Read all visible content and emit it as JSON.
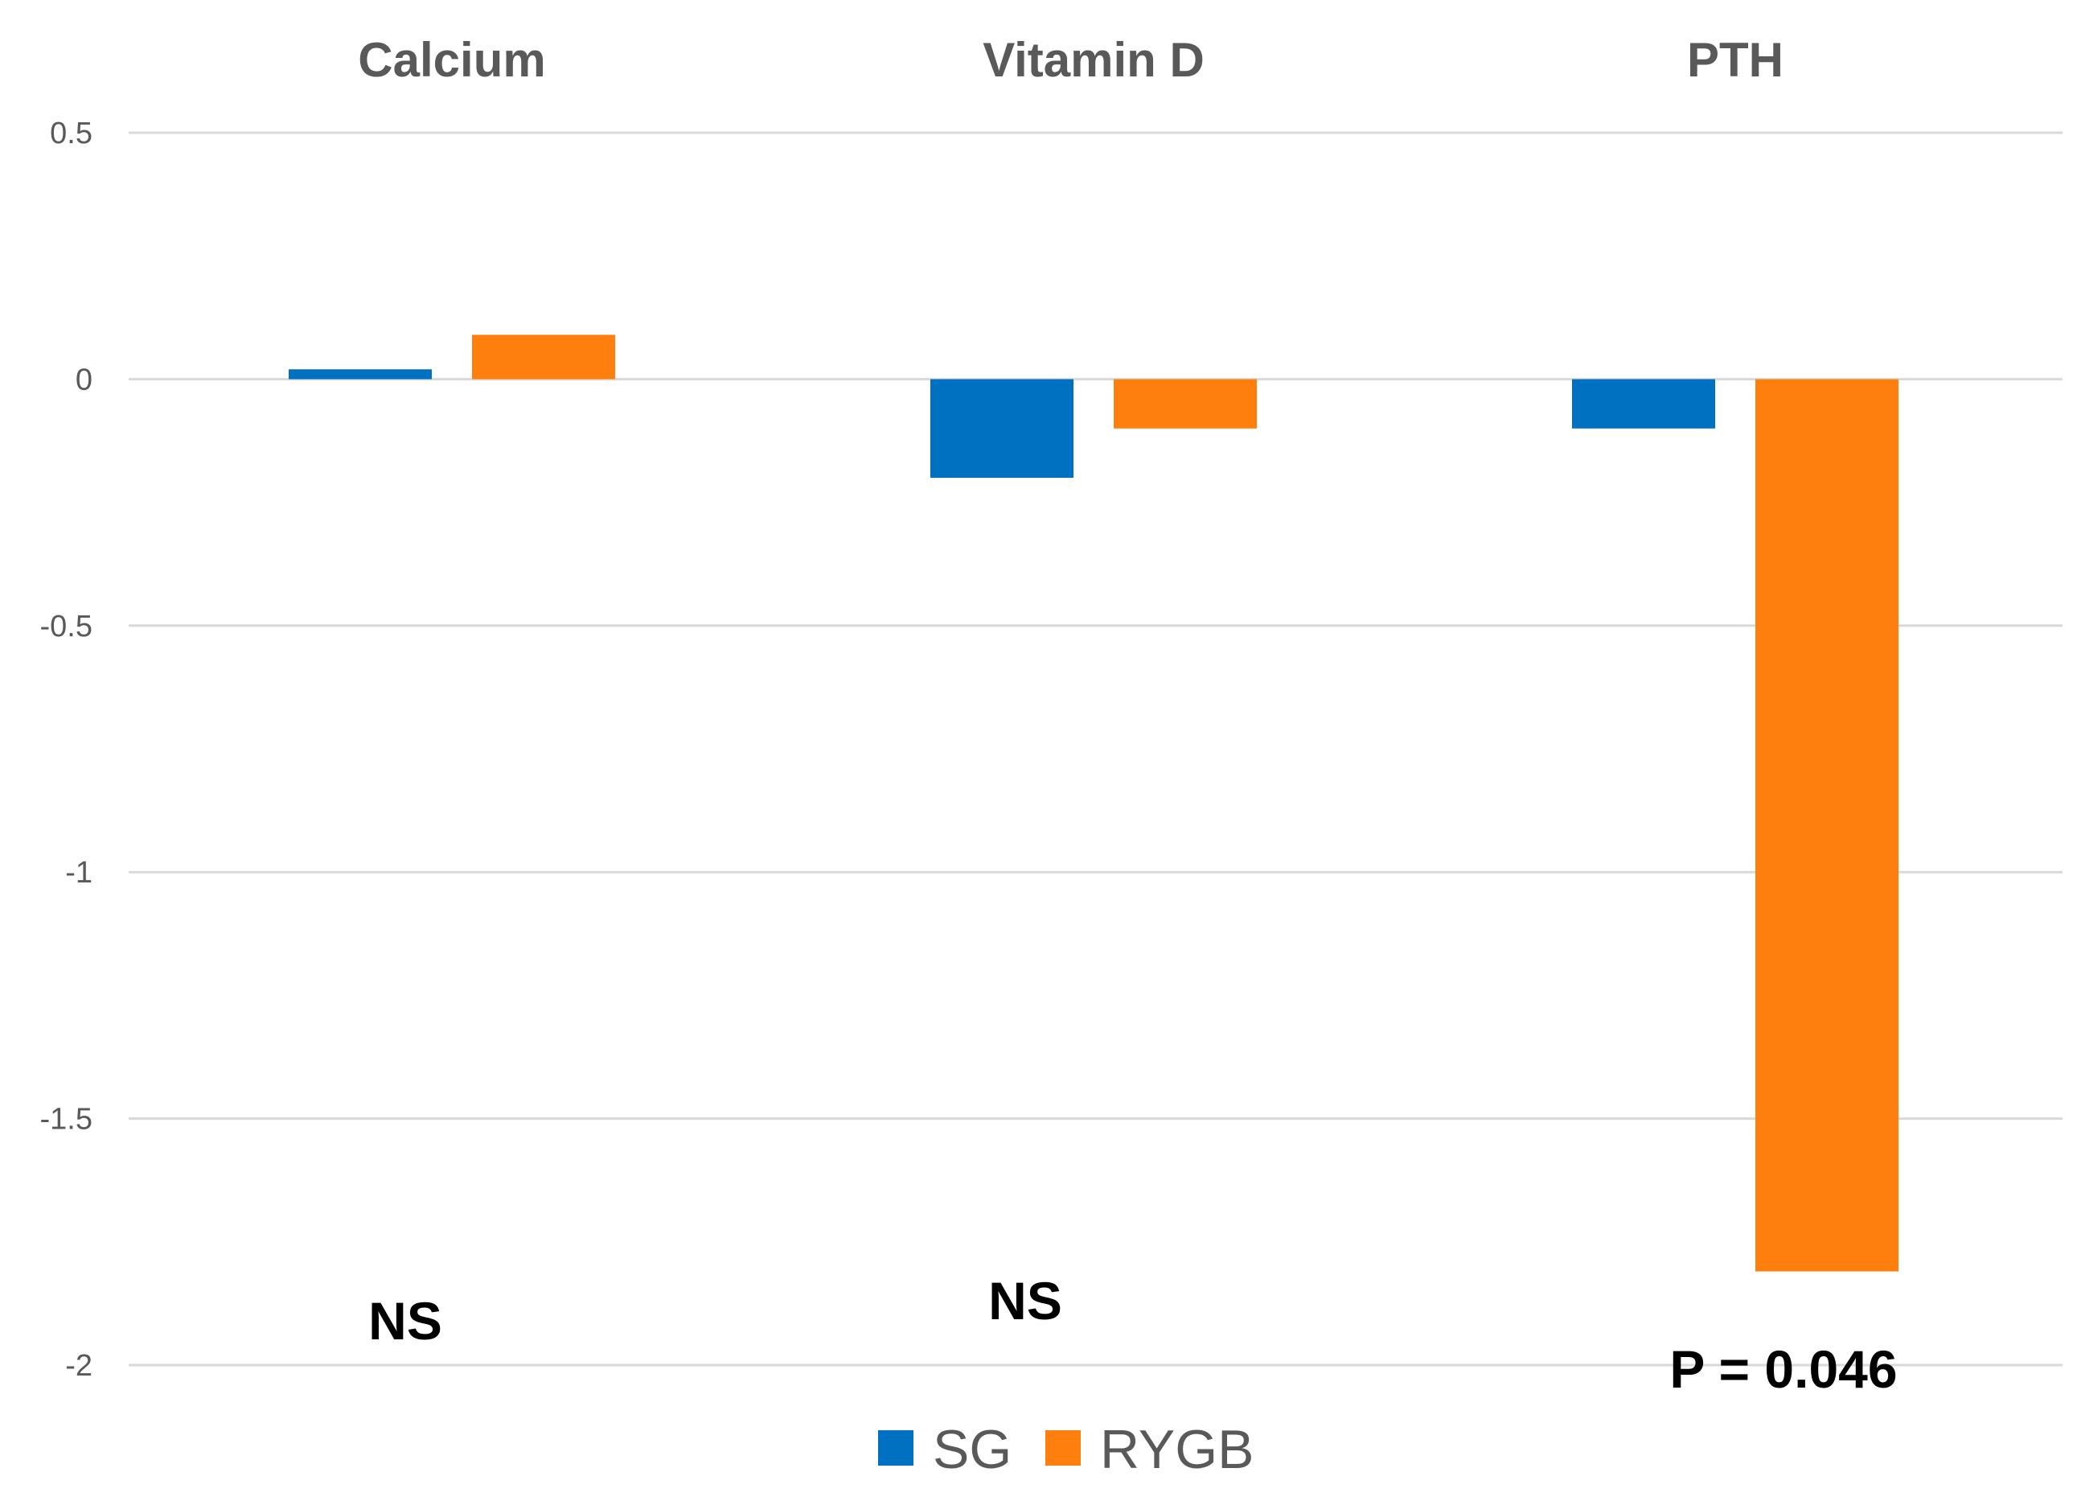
{
  "chart_data": {
    "type": "bar",
    "title": "",
    "xlabel": "",
    "ylabel": "",
    "categories": [
      "Calcium",
      "Vitamin D",
      "PTH"
    ],
    "series": [
      {
        "name": "SG",
        "color": "#0070c0",
        "values": [
          0.02,
          -0.2,
          -0.1
        ]
      },
      {
        "name": "RYGB",
        "color": "#ff7f0e",
        "values": [
          0.09,
          -0.1,
          -1.81
        ]
      }
    ],
    "ylim": [
      -2,
      0.5
    ],
    "yticks": [
      0.5,
      0,
      -0.5,
      -1,
      -1.5,
      -2
    ],
    "ytick_labels": [
      "0.5",
      "0",
      "-0.5",
      "-1",
      "-1.5",
      "-2"
    ],
    "grid": true,
    "legend": "bottom-center",
    "category_label_position": "top",
    "annotations": [
      "NS",
      "NS",
      "P = 0.046"
    ]
  }
}
